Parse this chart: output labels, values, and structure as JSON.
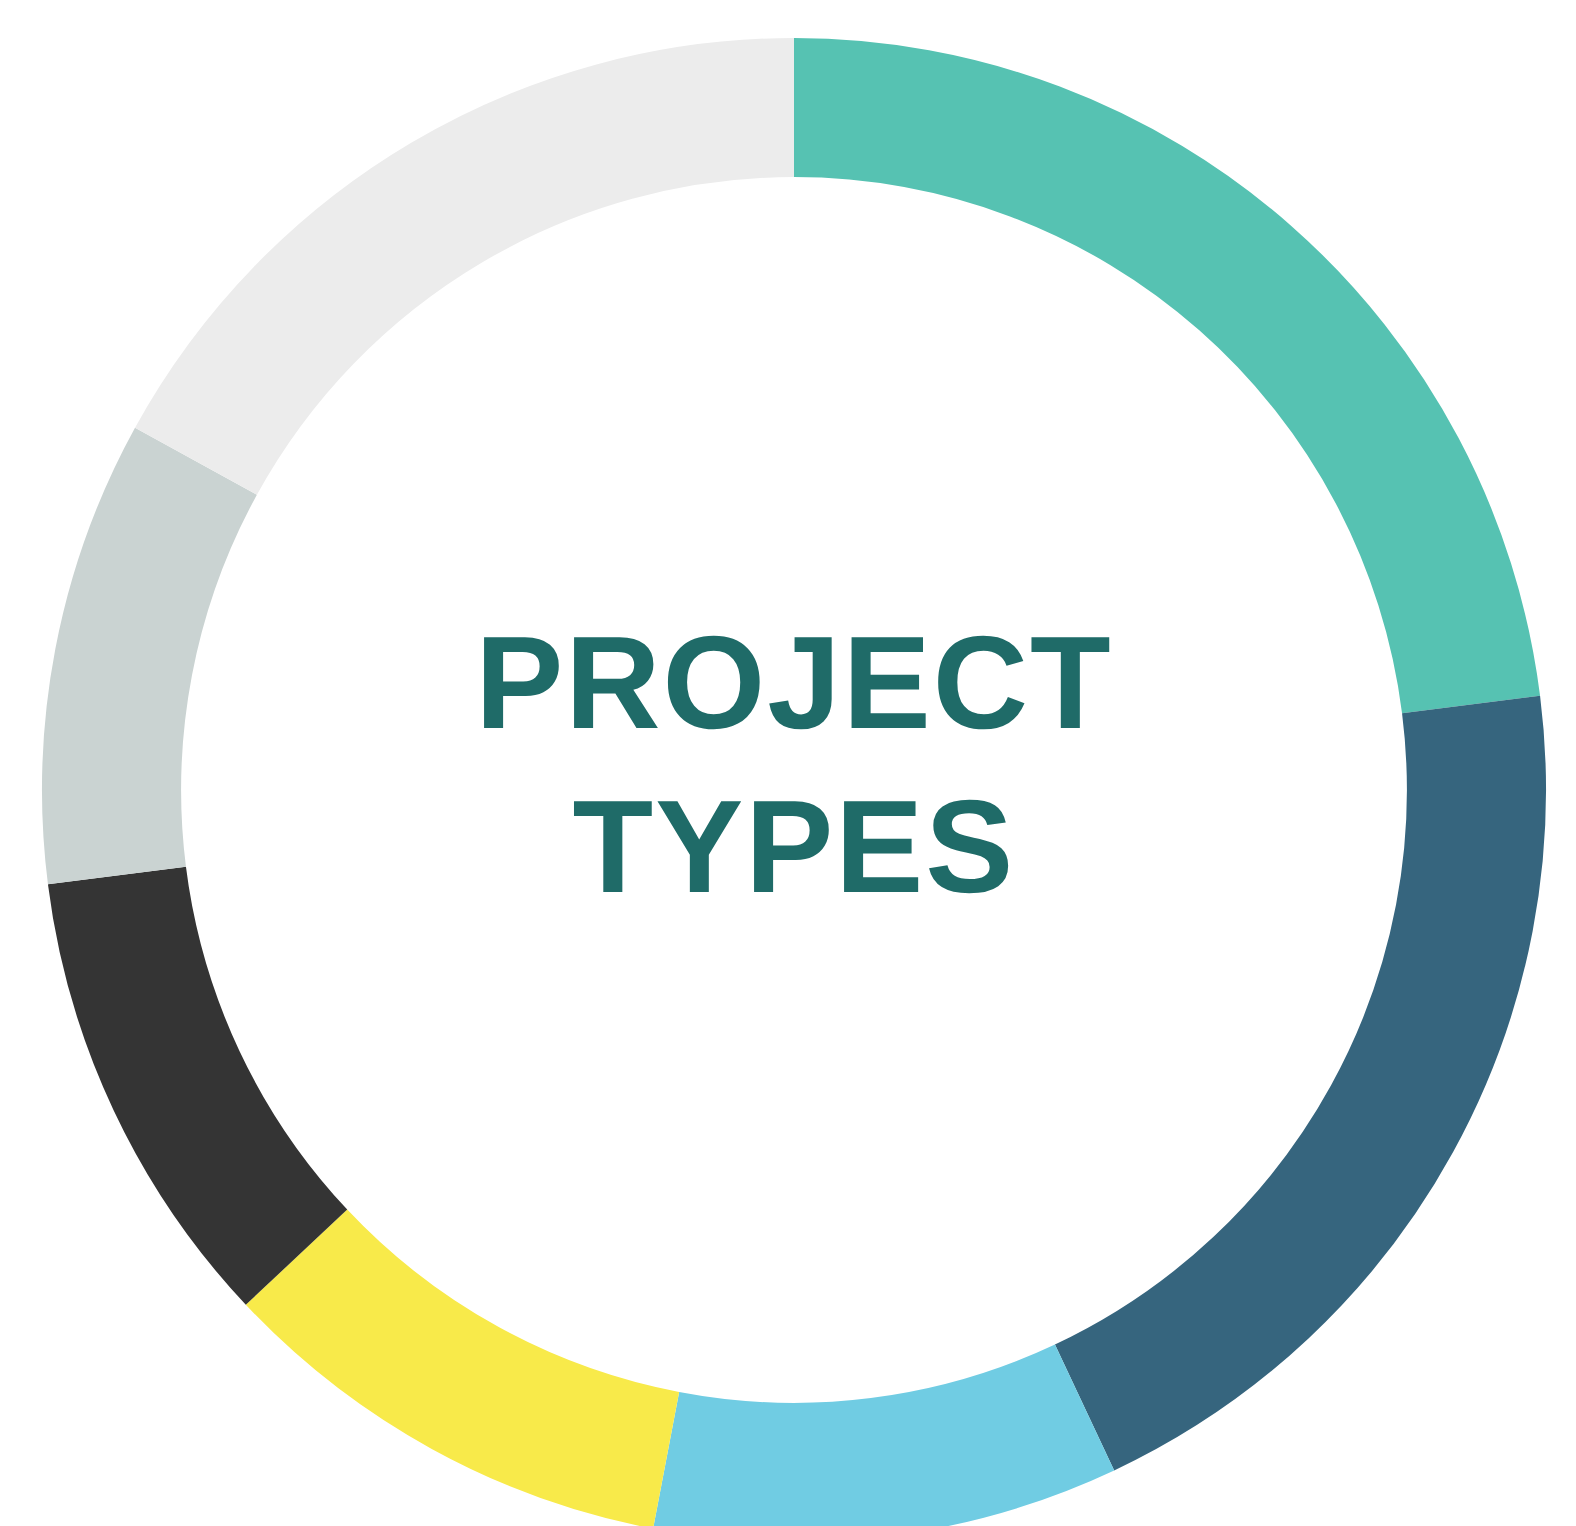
{
  "chart_data": {
    "type": "donut",
    "title": "PROJECT TYPES",
    "categories": [
      null,
      null,
      null,
      null,
      null,
      null,
      null
    ],
    "values": [
      23,
      20,
      10,
      10,
      10,
      10,
      17
    ],
    "colors": [
      "#56c2b2",
      "#36657e",
      "#70cce3",
      "#f8ea4a",
      "#343434",
      "#cad3d2",
      "#ececec"
    ],
    "legend": false
  }
}
